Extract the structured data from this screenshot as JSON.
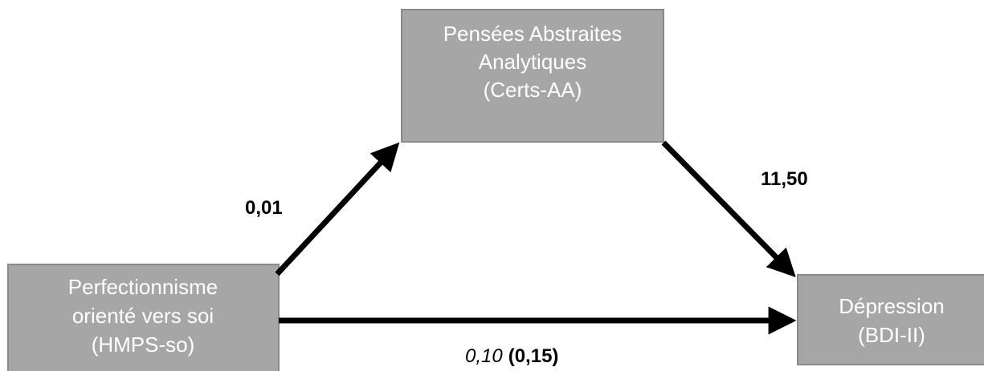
{
  "nodes": [
    {
      "lines": [
        "Pensées Abstraites",
        "Analytiques",
        "(Certs-AA)"
      ]
    },
    {
      "lines": [
        "Perfectionnisme",
        "orienté vers soi",
        "(HMPS-so)"
      ]
    },
    {
      "lines": [
        "Dépression",
        "(BDI-II)"
      ]
    }
  ],
  "edges": [
    {
      "label": "0,01"
    },
    {
      "label": "11,50"
    },
    {
      "label": "0,10",
      "label_total": "(0,15)"
    }
  ]
}
